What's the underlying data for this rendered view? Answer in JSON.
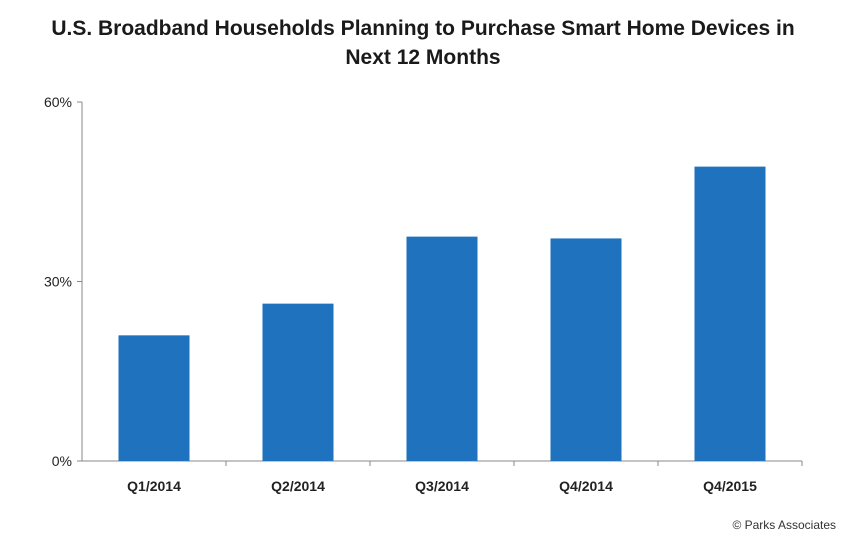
{
  "title": {
    "line1": "U.S. Broadband Households Planning to Purchase Smart Home Devices in",
    "line2": "Next 12 Months"
  },
  "copyright": "© Parks Associates",
  "colors": {
    "bar": "#1F72BE",
    "axis": "#888888",
    "text": "#222222"
  },
  "chart_data": {
    "type": "bar",
    "title": "U.S. Broadband Households Planning to Purchase Smart Home Devices in Next 12 Months",
    "xlabel": "",
    "ylabel": "",
    "categories": [
      "Q1/2014",
      "Q2/2014",
      "Q3/2014",
      "Q4/2014",
      "Q4/2015"
    ],
    "values": [
      21,
      26.3,
      37.5,
      37.2,
      49.2
    ],
    "unit": "%",
    "ylim": [
      0,
      60
    ],
    "yticks": [
      0,
      30,
      60
    ],
    "ytick_labels": [
      "0%",
      "30%",
      "60%"
    ],
    "grid": false,
    "legend": "none"
  }
}
